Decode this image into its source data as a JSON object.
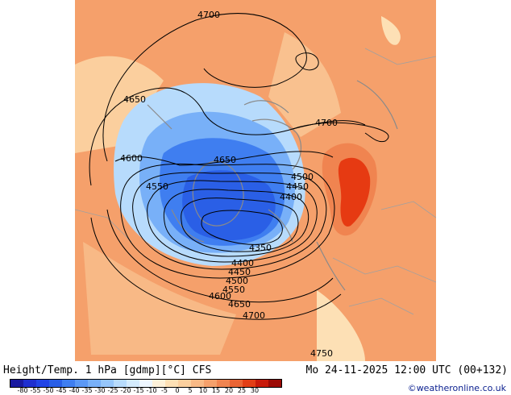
{
  "header": {
    "title_left": "Height/Temp. 1 hPa [gdmp][°C] CFS",
    "title_right": "Mo 24-11-2025 12:00 UTC (00+132)",
    "credit": "©weatheronline.co.uk"
  },
  "map": {
    "contour_labels": [
      {
        "value": "4700",
        "at": "top"
      },
      {
        "value": "4650",
        "at": "northwest"
      },
      {
        "value": "4700",
        "at": "east"
      },
      {
        "value": "4600",
        "at": "west"
      },
      {
        "value": "4650",
        "at": "center-north"
      },
      {
        "value": "4550",
        "at": "west"
      },
      {
        "value": "4500",
        "at": "east"
      },
      {
        "value": "4450",
        "at": "east"
      },
      {
        "value": "4400",
        "at": "east"
      },
      {
        "value": "4350",
        "at": "center"
      },
      {
        "value": "4400",
        "at": "south"
      },
      {
        "value": "4450",
        "at": "south"
      },
      {
        "value": "4500",
        "at": "south"
      },
      {
        "value": "4550",
        "at": "south"
      },
      {
        "value": "4600",
        "at": "south"
      },
      {
        "value": "4650",
        "at": "south"
      },
      {
        "value": "4700",
        "at": "south"
      },
      {
        "value": "4750",
        "at": "bottom"
      }
    ],
    "colors": {
      "warm_background": "#f5a06b",
      "warm_light": "#fbcf9e",
      "hot_core": "#e63a12",
      "cold_core": "#2a5fe6"
    }
  },
  "colorbar": {
    "labels": [
      "-80",
      "-55",
      "-50",
      "-45",
      "-40",
      "-35",
      "-30",
      "-25",
      "-20",
      "-15",
      "-10",
      "-5",
      "0",
      "5",
      "10",
      "15",
      "20",
      "25",
      "30"
    ],
    "colors": [
      "#1a1aa0",
      "#1f2fd0",
      "#2244e6",
      "#2a5fe6",
      "#3f7ef0",
      "#5b98f5",
      "#78b0f8",
      "#96c6fb",
      "#b7dbfc",
      "#d4ebfd",
      "#eef6ff",
      "#fdf1d9",
      "#fde0b5",
      "#fbcf9e",
      "#f8b986",
      "#f5a06b",
      "#f08450",
      "#ea6434",
      "#e23e16",
      "#c81a0a",
      "#9c0a05"
    ]
  }
}
